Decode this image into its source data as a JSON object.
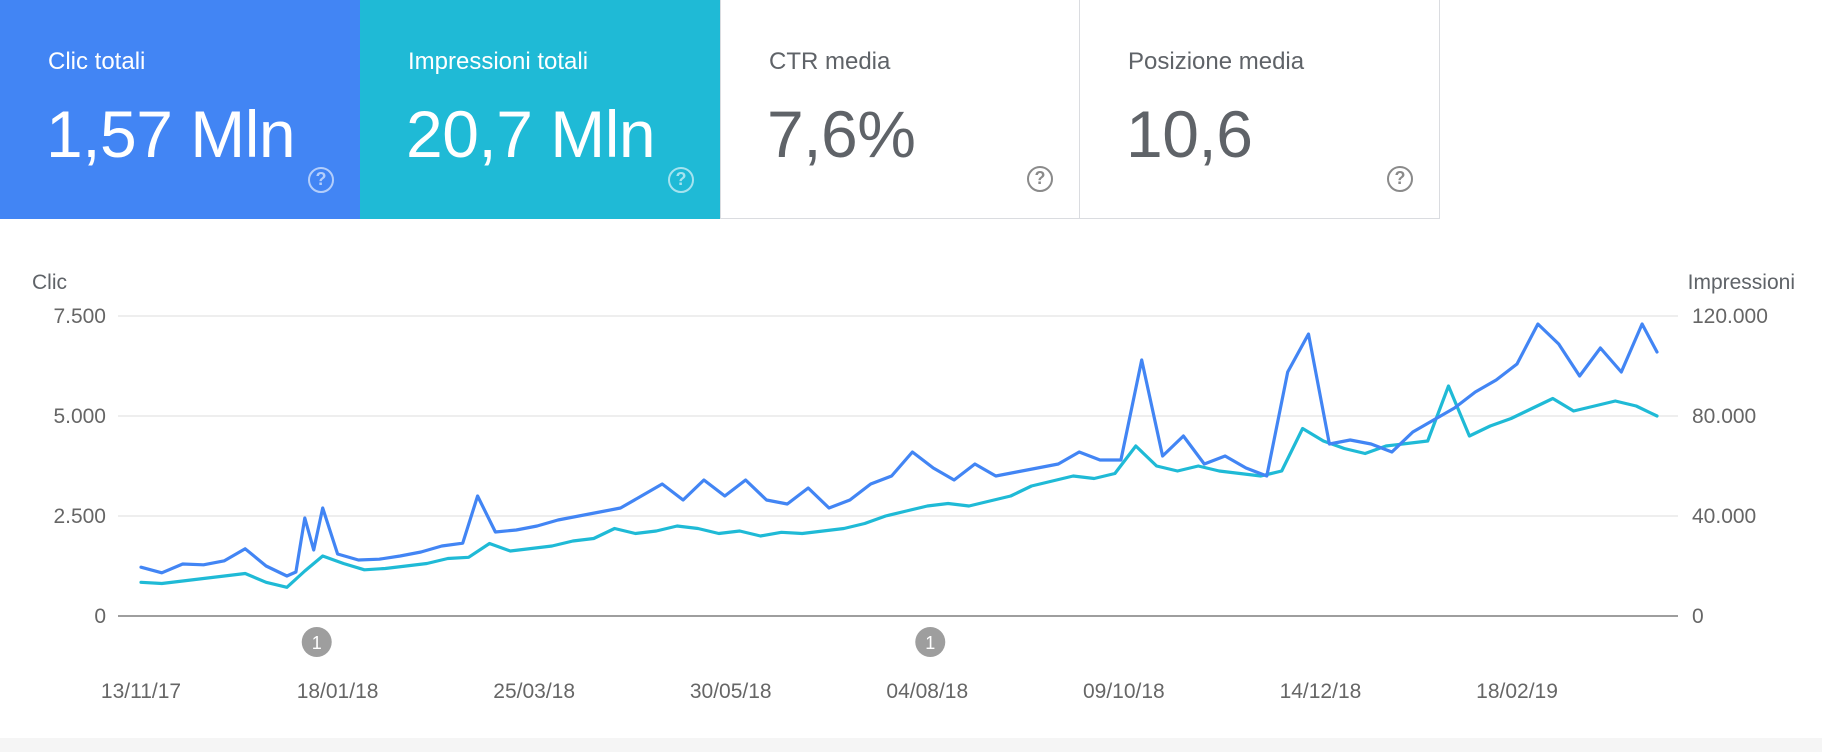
{
  "cards": [
    {
      "label": "Clic totali",
      "value": "1,57 Mln",
      "help": "?"
    },
    {
      "label": "Impressioni totali",
      "value": "20,7 Mln",
      "help": "?"
    },
    {
      "label": "CTR media",
      "value": "7,6%",
      "help": "?"
    },
    {
      "label": "Posizione media",
      "value": "10,6",
      "help": "?"
    }
  ],
  "colors": {
    "clicks": "#4285f4",
    "impressions": "#1fbad6",
    "grid": "#e8e8e8",
    "axis": "#9e9e9e",
    "text": "#5f6368",
    "annotation": "#9e9e9e"
  },
  "chart_data": {
    "type": "line",
    "grid": true,
    "legend": "none",
    "y_left": {
      "label": "Clic",
      "range": [
        0,
        7500
      ],
      "ticks": [
        0,
        2500,
        5000,
        7500
      ],
      "tick_labels": [
        "0",
        "2.500",
        "5.000",
        "7.500"
      ]
    },
    "y_right": {
      "label": "Impressioni",
      "range": [
        0,
        120000
      ],
      "ticks": [
        0,
        40000,
        80000,
        120000
      ],
      "tick_labels": [
        "0",
        "40.000",
        "80.000",
        "120.000"
      ]
    },
    "x_axis": {
      "start": "2017-11-13",
      "end": "2019-04-06",
      "tick_labels": [
        "13/11/17",
        "18/01/18",
        "25/03/18",
        "30/05/18",
        "04/08/18",
        "09/10/18",
        "14/12/18",
        "18/02/19"
      ]
    },
    "annotations": [
      {
        "date": "2018-01-11",
        "label": "1"
      },
      {
        "date": "2018-08-05",
        "label": "1"
      }
    ],
    "series": [
      {
        "axis": "left",
        "points": [
          [
            "2017-11-13",
            1220
          ],
          [
            "2017-11-20",
            1080
          ],
          [
            "2017-11-27",
            1300
          ],
          [
            "2017-12-04",
            1280
          ],
          [
            "2017-12-11",
            1380
          ],
          [
            "2017-12-18",
            1680
          ],
          [
            "2017-12-25",
            1250
          ],
          [
            "2018-01-01",
            1000
          ],
          [
            "2018-01-04",
            1100
          ],
          [
            "2018-01-07",
            2450
          ],
          [
            "2018-01-10",
            1650
          ],
          [
            "2018-01-13",
            2700
          ],
          [
            "2018-01-18",
            1550
          ],
          [
            "2018-01-25",
            1400
          ],
          [
            "2018-02-01",
            1420
          ],
          [
            "2018-02-08",
            1500
          ],
          [
            "2018-02-15",
            1600
          ],
          [
            "2018-02-22",
            1750
          ],
          [
            "2018-03-01",
            1820
          ],
          [
            "2018-03-06",
            3000
          ],
          [
            "2018-03-12",
            2100
          ],
          [
            "2018-03-19",
            2150
          ],
          [
            "2018-03-26",
            2250
          ],
          [
            "2018-04-02",
            2400
          ],
          [
            "2018-04-09",
            2500
          ],
          [
            "2018-04-16",
            2600
          ],
          [
            "2018-04-23",
            2700
          ],
          [
            "2018-04-30",
            3000
          ],
          [
            "2018-05-07",
            3300
          ],
          [
            "2018-05-14",
            2900
          ],
          [
            "2018-05-21",
            3400
          ],
          [
            "2018-05-28",
            3000
          ],
          [
            "2018-06-04",
            3400
          ],
          [
            "2018-06-11",
            2900
          ],
          [
            "2018-06-18",
            2800
          ],
          [
            "2018-06-25",
            3200
          ],
          [
            "2018-07-02",
            2700
          ],
          [
            "2018-07-09",
            2900
          ],
          [
            "2018-07-16",
            3300
          ],
          [
            "2018-07-23",
            3500
          ],
          [
            "2018-07-30",
            4100
          ],
          [
            "2018-08-06",
            3700
          ],
          [
            "2018-08-13",
            3400
          ],
          [
            "2018-08-20",
            3800
          ],
          [
            "2018-08-27",
            3500
          ],
          [
            "2018-09-03",
            3600
          ],
          [
            "2018-09-10",
            3700
          ],
          [
            "2018-09-17",
            3800
          ],
          [
            "2018-09-24",
            4100
          ],
          [
            "2018-10-01",
            3900
          ],
          [
            "2018-10-08",
            3900
          ],
          [
            "2018-10-15",
            6400
          ],
          [
            "2018-10-22",
            4000
          ],
          [
            "2018-10-29",
            4500
          ],
          [
            "2018-11-05",
            3800
          ],
          [
            "2018-11-12",
            4000
          ],
          [
            "2018-11-19",
            3700
          ],
          [
            "2018-11-26",
            3500
          ],
          [
            "2018-12-03",
            6100
          ],
          [
            "2018-12-10",
            7050
          ],
          [
            "2018-12-17",
            4300
          ],
          [
            "2018-12-24",
            4400
          ],
          [
            "2018-12-31",
            4300
          ],
          [
            "2019-01-07",
            4100
          ],
          [
            "2019-01-14",
            4600
          ],
          [
            "2019-01-21",
            4900
          ],
          [
            "2019-01-28",
            5200
          ],
          [
            "2019-02-04",
            5600
          ],
          [
            "2019-02-11",
            5900
          ],
          [
            "2019-02-18",
            6300
          ],
          [
            "2019-02-25",
            7300
          ],
          [
            "2019-03-04",
            6800
          ],
          [
            "2019-03-11",
            6000
          ],
          [
            "2019-03-18",
            6700
          ],
          [
            "2019-03-25",
            6100
          ],
          [
            "2019-04-01",
            7300
          ],
          [
            "2019-04-06",
            6600
          ]
        ]
      },
      {
        "axis": "right",
        "points": [
          [
            "2017-11-13",
            13500
          ],
          [
            "2017-11-20",
            13000
          ],
          [
            "2017-11-27",
            14000
          ],
          [
            "2017-12-04",
            15000
          ],
          [
            "2017-12-11",
            16000
          ],
          [
            "2017-12-18",
            17000
          ],
          [
            "2017-12-25",
            13500
          ],
          [
            "2018-01-01",
            11500
          ],
          [
            "2018-01-07",
            18000
          ],
          [
            "2018-01-13",
            24000
          ],
          [
            "2018-01-20",
            21000
          ],
          [
            "2018-01-27",
            18500
          ],
          [
            "2018-02-03",
            19000
          ],
          [
            "2018-02-10",
            20000
          ],
          [
            "2018-02-17",
            21000
          ],
          [
            "2018-02-24",
            23000
          ],
          [
            "2018-03-03",
            23500
          ],
          [
            "2018-03-10",
            29000
          ],
          [
            "2018-03-17",
            26000
          ],
          [
            "2018-03-24",
            27000
          ],
          [
            "2018-03-31",
            28000
          ],
          [
            "2018-04-07",
            30000
          ],
          [
            "2018-04-14",
            31000
          ],
          [
            "2018-04-21",
            35000
          ],
          [
            "2018-04-28",
            33000
          ],
          [
            "2018-05-05",
            34000
          ],
          [
            "2018-05-12",
            36000
          ],
          [
            "2018-05-19",
            35000
          ],
          [
            "2018-05-26",
            33000
          ],
          [
            "2018-06-02",
            34000
          ],
          [
            "2018-06-09",
            32000
          ],
          [
            "2018-06-16",
            33500
          ],
          [
            "2018-06-23",
            33000
          ],
          [
            "2018-06-30",
            34000
          ],
          [
            "2018-07-07",
            35000
          ],
          [
            "2018-07-14",
            37000
          ],
          [
            "2018-07-21",
            40000
          ],
          [
            "2018-07-28",
            42000
          ],
          [
            "2018-08-04",
            44000
          ],
          [
            "2018-08-11",
            45000
          ],
          [
            "2018-08-18",
            44000
          ],
          [
            "2018-08-25",
            46000
          ],
          [
            "2018-09-01",
            48000
          ],
          [
            "2018-09-08",
            52000
          ],
          [
            "2018-09-15",
            54000
          ],
          [
            "2018-09-22",
            56000
          ],
          [
            "2018-09-29",
            55000
          ],
          [
            "2018-10-06",
            57000
          ],
          [
            "2018-10-13",
            68000
          ],
          [
            "2018-10-20",
            60000
          ],
          [
            "2018-10-27",
            58000
          ],
          [
            "2018-11-03",
            60000
          ],
          [
            "2018-11-10",
            58000
          ],
          [
            "2018-11-17",
            57000
          ],
          [
            "2018-11-24",
            56000
          ],
          [
            "2018-12-01",
            58000
          ],
          [
            "2018-12-08",
            75000
          ],
          [
            "2018-12-15",
            70000
          ],
          [
            "2018-12-22",
            67000
          ],
          [
            "2018-12-29",
            65000
          ],
          [
            "2019-01-05",
            68000
          ],
          [
            "2019-01-12",
            69000
          ],
          [
            "2019-01-19",
            70000
          ],
          [
            "2019-01-26",
            92000
          ],
          [
            "2019-02-02",
            72000
          ],
          [
            "2019-02-09",
            76000
          ],
          [
            "2019-02-16",
            79000
          ],
          [
            "2019-02-23",
            83000
          ],
          [
            "2019-03-02",
            87000
          ],
          [
            "2019-03-09",
            82000
          ],
          [
            "2019-03-16",
            84000
          ],
          [
            "2019-03-23",
            86000
          ],
          [
            "2019-03-30",
            84000
          ],
          [
            "2019-04-06",
            80000
          ]
        ]
      }
    ]
  }
}
